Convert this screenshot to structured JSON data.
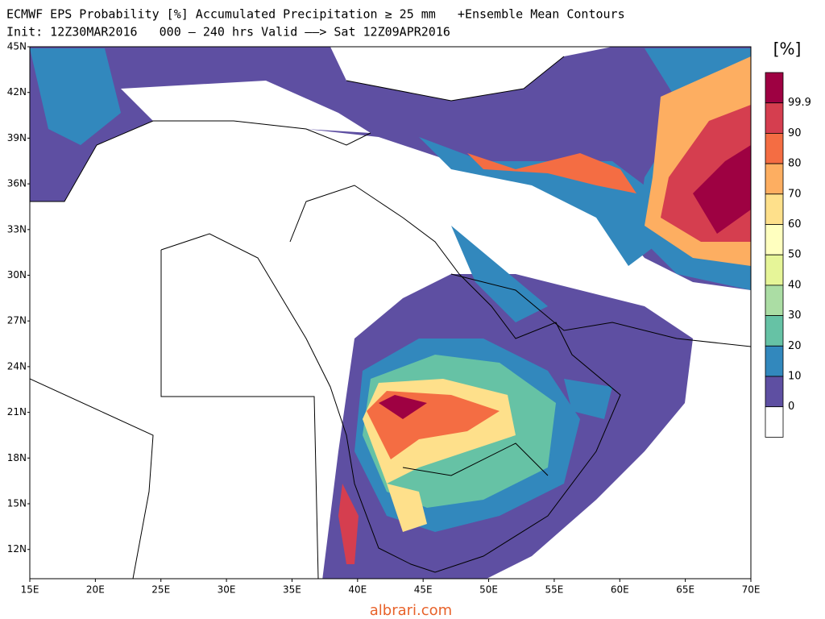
{
  "header": {
    "title": "ECMWF EPS Probability [%] Accumulated Precipitation ≥ 25 mm   +Ensemble Mean Contours",
    "subtitle": "Init: 12Z30MAR2016   000 – 240 hrs Valid ––> Sat 12Z09APR2016"
  },
  "map": {
    "lat_labels": [
      "45N",
      "42N",
      "39N",
      "36N",
      "33N",
      "30N",
      "27N",
      "24N",
      "21N",
      "18N",
      "15N",
      "12N"
    ],
    "lon_labels": [
      "15E",
      "20E",
      "25E",
      "30E",
      "35E",
      "40E",
      "45E",
      "50E",
      "55E",
      "60E",
      "65E",
      "70E"
    ]
  },
  "colorbar": {
    "unit": "[%]",
    "labels": [
      "99.9",
      "90",
      "80",
      "70",
      "60",
      "50",
      "40",
      "30",
      "20",
      "10",
      "0"
    ],
    "colors": [
      "#9e0142",
      "#d53e4f",
      "#f46d43",
      "#fdae61",
      "#fee08b",
      "#ffffbf",
      "#e6f598",
      "#abdda4",
      "#66c2a5",
      "#3288bd",
      "#5e4fa2",
      "#ffffff"
    ]
  },
  "footer": {
    "watermark": "albrari.com"
  }
}
